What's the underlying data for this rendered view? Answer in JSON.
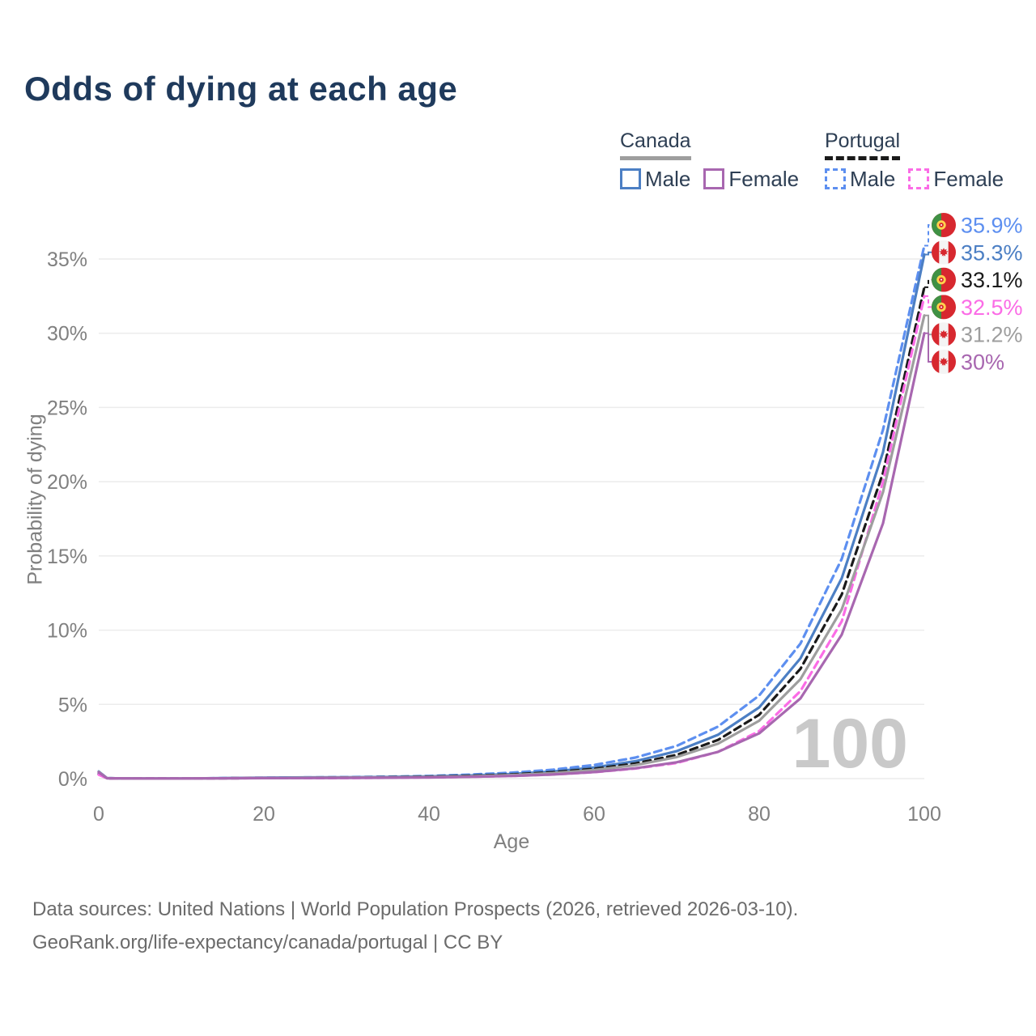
{
  "title": "Odds of dying at each age",
  "legend": {
    "canada": {
      "title": "Canada",
      "male_label": "Male",
      "female_label": "Female"
    },
    "portugal": {
      "title": "Portugal",
      "male_label": "Male",
      "female_label": "Female"
    }
  },
  "age_counter_watermark": "100",
  "footer": {
    "line1": "Data sources: United Nations | World Population Prospects (2026, retrieved 2026-03-10).",
    "line2": "GeoRank.org/life-expectancy/canada/portugal | CC BY"
  },
  "colors": {
    "title_text": "#1f3a5c",
    "legend_text": "#2e3f54",
    "axis_text": "#808080",
    "grid": "#ececec",
    "watermark": "#c9c9c9",
    "footer_text": "#6b6b6b",
    "canada_male": "#4c7fc4",
    "canada_female": "#a867b0",
    "canada_total": "#9e9e9e",
    "portugal_male": "#5d8ff0",
    "portugal_female": "#fb6ce6",
    "portugal_total": "#1a1a1a",
    "flag_red": "#d7282f",
    "flag_green": "#3f9144",
    "flag_yellow": "#ffd34d"
  },
  "chart_data": {
    "type": "line",
    "title": "Odds of dying at each age",
    "xlabel": "Age",
    "ylabel": "Probability of dying",
    "xlim": [
      0,
      100
    ],
    "ylim": [
      0,
      37
    ],
    "grid": true,
    "x_ticks": [
      0,
      20,
      40,
      60,
      80,
      100
    ],
    "y_ticks": [
      0,
      5,
      10,
      15,
      20,
      25,
      30,
      35
    ],
    "y_tick_suffix": "%",
    "x": [
      0,
      1,
      2,
      5,
      10,
      15,
      20,
      25,
      30,
      35,
      40,
      45,
      50,
      55,
      60,
      65,
      70,
      75,
      80,
      85,
      90,
      95,
      100
    ],
    "series": [
      {
        "id": "portugal-male",
        "name": "Portugal Male",
        "country": "portugal",
        "color": "#5d8ff0",
        "dash": true,
        "end_label": "35.9%",
        "values": [
          0.32,
          0.03,
          0.02,
          0.01,
          0.01,
          0.03,
          0.06,
          0.08,
          0.1,
          0.13,
          0.18,
          0.27,
          0.4,
          0.6,
          0.92,
          1.42,
          2.2,
          3.5,
          5.6,
          9.1,
          14.8,
          23.5,
          35.9
        ]
      },
      {
        "id": "canada-male",
        "name": "Canada Male",
        "country": "canada",
        "color": "#4c7fc4",
        "dash": false,
        "end_label": "35.3%",
        "values": [
          0.48,
          0.03,
          0.02,
          0.01,
          0.01,
          0.03,
          0.06,
          0.08,
          0.09,
          0.11,
          0.15,
          0.21,
          0.31,
          0.48,
          0.75,
          1.17,
          1.85,
          2.95,
          4.8,
          8.1,
          13.5,
          22.0,
          35.3
        ]
      },
      {
        "id": "portugal-total",
        "name": "Portugal (both sexes)",
        "country": "portugal",
        "color": "#1a1a1a",
        "dash": true,
        "end_label": "33.1%",
        "values": [
          0.29,
          0.02,
          0.01,
          0.01,
          0.01,
          0.02,
          0.04,
          0.05,
          0.07,
          0.09,
          0.13,
          0.19,
          0.28,
          0.43,
          0.66,
          1.02,
          1.6,
          2.6,
          4.3,
          7.4,
          12.4,
          20.6,
          33.1
        ]
      },
      {
        "id": "portugal-female",
        "name": "Portugal Female",
        "country": "portugal",
        "color": "#fb6ce6",
        "dash": true,
        "end_label": "32.5%",
        "values": [
          0.26,
          0.02,
          0.01,
          0.01,
          0.01,
          0.02,
          0.03,
          0.03,
          0.04,
          0.06,
          0.08,
          0.12,
          0.18,
          0.28,
          0.43,
          0.68,
          1.05,
          1.8,
          3.2,
          5.9,
          10.6,
          20.0,
          32.5
        ]
      },
      {
        "id": "canada-total",
        "name": "Canada (both sexes)",
        "country": "canada",
        "color": "#9e9e9e",
        "dash": false,
        "end_label": "31.2%",
        "values": [
          0.45,
          0.03,
          0.02,
          0.01,
          0.01,
          0.02,
          0.04,
          0.06,
          0.07,
          0.08,
          0.11,
          0.16,
          0.24,
          0.37,
          0.58,
          0.91,
          1.45,
          2.35,
          3.9,
          6.7,
          11.4,
          19.3,
          31.2
        ]
      },
      {
        "id": "canada-female",
        "name": "Canada Female",
        "country": "canada",
        "color": "#a867b0",
        "dash": false,
        "end_label": "30%",
        "values": [
          0.42,
          0.02,
          0.02,
          0.01,
          0.01,
          0.02,
          0.03,
          0.04,
          0.05,
          0.06,
          0.08,
          0.12,
          0.18,
          0.28,
          0.44,
          0.7,
          1.1,
          1.8,
          3.05,
          5.4,
          9.7,
          17.2,
          30.0
        ]
      }
    ]
  }
}
